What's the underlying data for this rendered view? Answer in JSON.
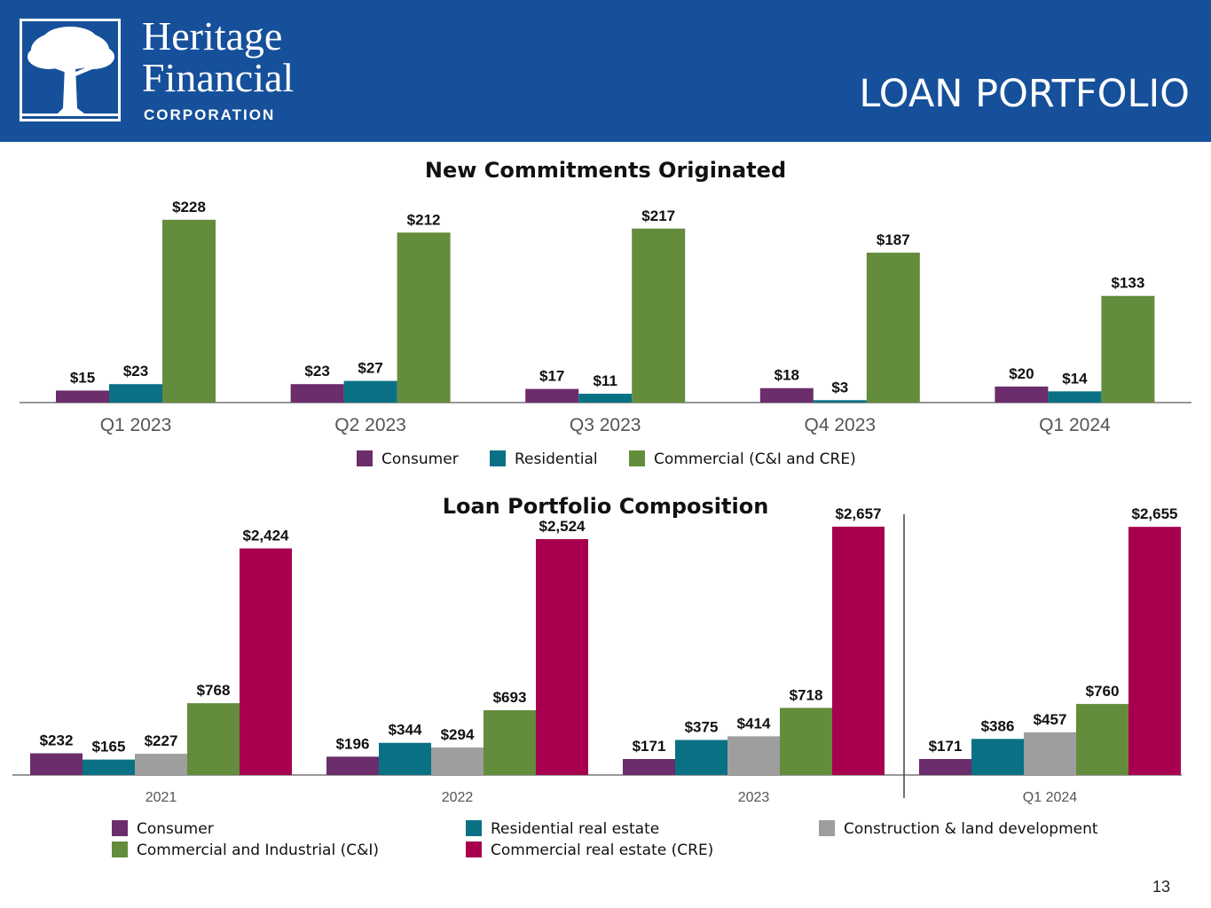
{
  "header": {
    "brand_line1": "Heritage",
    "brand_line2": "Financial",
    "brand_line3": "CORPORATION",
    "slide_title": "LOAN PORTFOLIO",
    "logo_icon": "tree-icon",
    "background_color": "#16509b"
  },
  "page_number": "13",
  "chart_data": [
    {
      "type": "bar",
      "title": "New Commitments Originated",
      "categories": [
        "Q1 2023",
        "Q2 2023",
        "Q3 2023",
        "Q4 2023",
        "Q1 2024"
      ],
      "series": [
        {
          "name": "Consumer",
          "color": "#6b2d6b",
          "values": [
            15,
            23,
            17,
            18,
            20
          ],
          "labels": [
            "$15",
            "$23",
            "$17",
            "$18",
            "$20"
          ]
        },
        {
          "name": "Residential",
          "color": "#0a7185",
          "values": [
            23,
            27,
            11,
            3,
            14
          ],
          "labels": [
            "$23",
            "$27",
            "$11",
            "$3",
            "$14"
          ]
        },
        {
          "name": "Commercial (C&I and CRE)",
          "color": "#638c3c",
          "values": [
            228,
            212,
            217,
            187,
            133
          ],
          "labels": [
            "$228",
            "$212",
            "$217",
            "$187",
            "$133"
          ]
        }
      ],
      "xlabel": "",
      "ylabel": "",
      "ylim": [
        0,
        240
      ],
      "grid": false,
      "legend": "bottom"
    },
    {
      "type": "bar",
      "title": "Loan Portfolio Composition",
      "categories": [
        "2021",
        "2022",
        "2023",
        "Q1 2024"
      ],
      "series": [
        {
          "name": "Consumer",
          "color": "#6b2d6b",
          "values": [
            232,
            196,
            171,
            171
          ],
          "labels": [
            "$232",
            "$196",
            "$171",
            "$171"
          ]
        },
        {
          "name": "Residential real estate",
          "color": "#0a7185",
          "values": [
            165,
            344,
            375,
            386
          ],
          "labels": [
            "$165",
            "$344",
            "$375",
            "$386"
          ]
        },
        {
          "name": "Construction & land development",
          "color": "#9e9e9e",
          "values": [
            227,
            294,
            414,
            457
          ],
          "labels": [
            "$227",
            "$294",
            "$414",
            "$457"
          ]
        },
        {
          "name": "Commercial and Industrial (C&I)",
          "color": "#638c3c",
          "values": [
            768,
            693,
            718,
            760
          ],
          "labels": [
            "$768",
            "$693",
            "$718",
            "$760"
          ]
        },
        {
          "name": "Commercial real estate (CRE)",
          "color": "#a8004f",
          "values": [
            2424,
            2524,
            2657,
            2655
          ],
          "labels": [
            "$2,424",
            "$2,524",
            "$2,657",
            "$2,655"
          ]
        }
      ],
      "xlabel": "",
      "ylabel": "",
      "ylim": [
        0,
        2800
      ],
      "grid": false,
      "legend": "bottom"
    }
  ]
}
